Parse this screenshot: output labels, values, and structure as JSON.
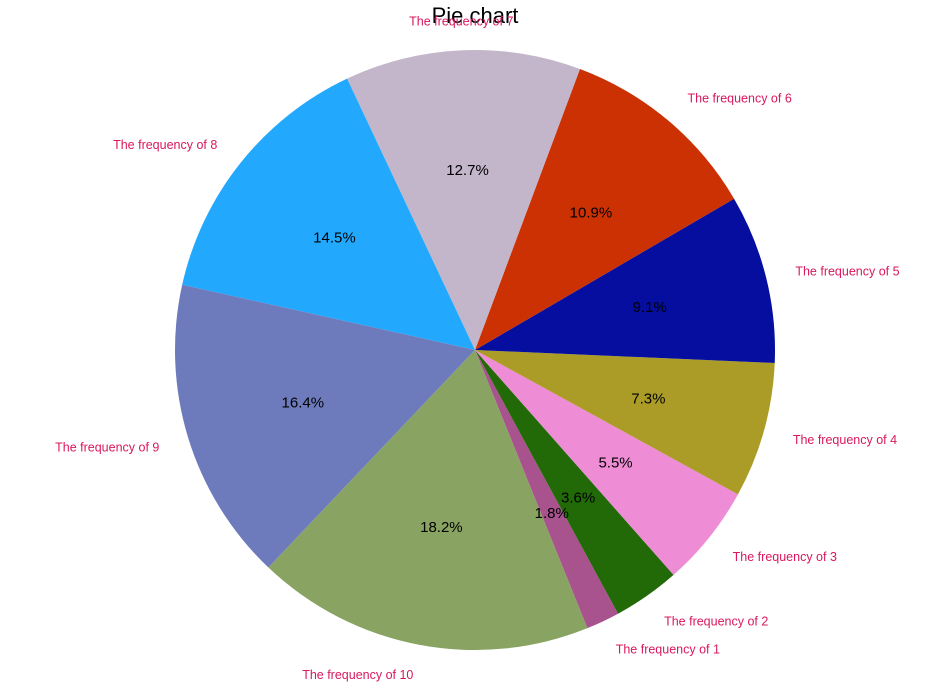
{
  "chart_data": {
    "type": "pie",
    "title": "Pie chart",
    "slices": [
      {
        "label": "The frequency of 1",
        "value": 1.8,
        "pct_label": "1.8%",
        "color": "#a8528e"
      },
      {
        "label": "The frequency of 2",
        "value": 3.6,
        "pct_label": "3.6%",
        "color": "#226a08"
      },
      {
        "label": "The frequency of 3",
        "value": 5.5,
        "pct_label": "5.5%",
        "color": "#ee8cd5"
      },
      {
        "label": "The frequency of 4",
        "value": 7.3,
        "pct_label": "7.3%",
        "color": "#ab9c27"
      },
      {
        "label": "The frequency of 5",
        "value": 9.1,
        "pct_label": "9.1%",
        "color": "#050e9e"
      },
      {
        "label": "The frequency of 6",
        "value": 10.9,
        "pct_label": "10.9%",
        "color": "#cc3104"
      },
      {
        "label": "The frequency of 7",
        "value": 12.7,
        "pct_label": "12.7%",
        "color": "#c4b6ca"
      },
      {
        "label": "The frequency of 8",
        "value": 14.5,
        "pct_label": "14.5%",
        "color": "#22a9fd"
      },
      {
        "label": "The frequency of 9",
        "value": 16.4,
        "pct_label": "16.4%",
        "color": "#6d7bbd"
      },
      {
        "label": "The frequency of 10",
        "value": 18.2,
        "pct_label": "18.2%",
        "color": "#89a362"
      }
    ]
  }
}
